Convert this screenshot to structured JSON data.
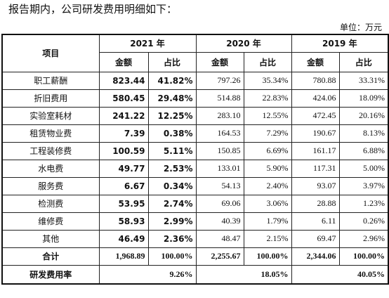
{
  "intro": "报告期内，公司研发费用明细如下：",
  "unit": "单位：万元",
  "headers": {
    "item": "项目",
    "years": [
      "2021 年",
      "2020 年",
      "2019 年"
    ],
    "amount": "金额",
    "share": "占比"
  },
  "rows": [
    {
      "name": "职工薪酬",
      "v2021": "823.44",
      "p2021": "41.82%",
      "v2020": "797.26",
      "p2020": "35.34%",
      "v2019": "780.88",
      "p2019": "33.31%"
    },
    {
      "name": "折旧费用",
      "v2021": "580.45",
      "p2021": "29.48%",
      "v2020": "514.88",
      "p2020": "22.83%",
      "v2019": "424.06",
      "p2019": "18.09%"
    },
    {
      "name": "实验室耗材",
      "v2021": "241.22",
      "p2021": "12.25%",
      "v2020": "283.10",
      "p2020": "12.55%",
      "v2019": "472.45",
      "p2019": "20.16%"
    },
    {
      "name": "租赁物业费",
      "v2021": "7.39",
      "p2021": "0.38%",
      "v2020": "164.53",
      "p2020": "7.29%",
      "v2019": "190.67",
      "p2019": "8.13%"
    },
    {
      "name": "工程装修费",
      "v2021": "100.59",
      "p2021": "5.11%",
      "v2020": "150.85",
      "p2020": "6.69%",
      "v2019": "161.17",
      "p2019": "6.88%"
    },
    {
      "name": "水电费",
      "v2021": "49.77",
      "p2021": "2.53%",
      "v2020": "133.01",
      "p2020": "5.90%",
      "v2019": "117.31",
      "p2019": "5.00%"
    },
    {
      "name": "服务费",
      "v2021": "6.67",
      "p2021": "0.34%",
      "v2020": "54.13",
      "p2020": "2.40%",
      "v2019": "93.07",
      "p2019": "3.97%"
    },
    {
      "name": "检测费",
      "v2021": "53.95",
      "p2021": "2.74%",
      "v2020": "69.06",
      "p2020": "3.06%",
      "v2019": "28.88",
      "p2019": "1.23%"
    },
    {
      "name": "维修费",
      "v2021": "58.93",
      "p2021": "2.99%",
      "v2020": "40.39",
      "p2020": "1.79%",
      "v2019": "6.11",
      "p2019": "0.26%"
    },
    {
      "name": "其他",
      "v2021": "46.49",
      "p2021": "2.36%",
      "v2020": "48.47",
      "p2020": "2.15%",
      "v2019": "69.47",
      "p2019": "2.96%"
    }
  ],
  "total": {
    "name": "合计",
    "v2021": "1,968.89",
    "p2021": "100.00%",
    "v2020": "2,255.67",
    "p2020": "100.00%",
    "v2019": "2,344.06",
    "p2019": "100.00%"
  },
  "ratio": {
    "name": "研发费用率",
    "y2021": "9.26%",
    "y2020": "18.05%",
    "y2019": "40.05%"
  }
}
